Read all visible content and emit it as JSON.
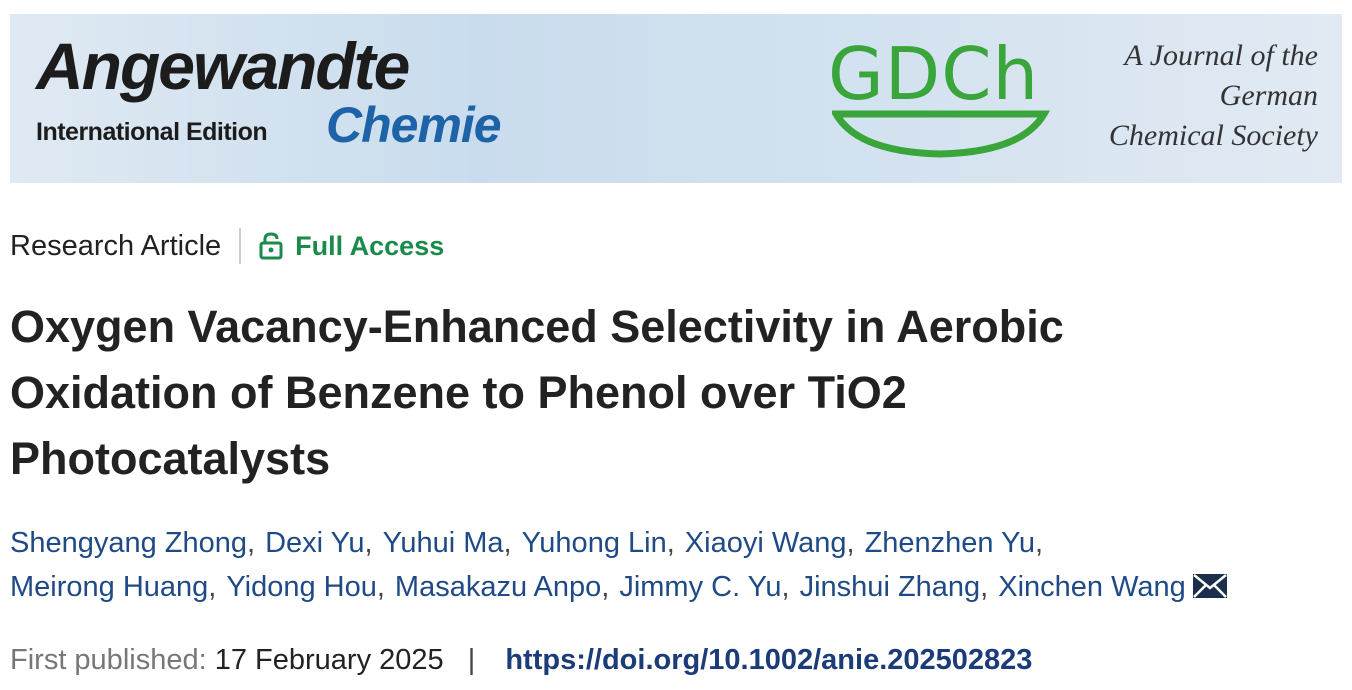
{
  "banner": {
    "journal_name": "Angewandte",
    "journal_subname": "Chemie",
    "edition": "International Edition",
    "society_logo": "GDCh",
    "tagline": [
      "A Journal of the",
      "German",
      "Chemical Society"
    ]
  },
  "article": {
    "type": "Research Article",
    "access": "Full Access",
    "title_lines": [
      "Oxygen Vacancy-Enhanced Selectivity in Aerobic",
      "Oxidation of Benzene to Phenol over TiO2",
      "Photocatalysts"
    ],
    "authors": [
      [
        "Shengyang Zhong",
        "Dexi Yu",
        "Yuhui Ma",
        "Yuhong Lin",
        "Xiaoyi Wang",
        "Zhenzhen Yu"
      ],
      [
        "Meirong Huang",
        "Yidong Hou",
        "Masakazu Anpo",
        "Jimmy C. Yu",
        "Jinshui Zhang",
        "Xinchen Wang"
      ]
    ],
    "author_separator": ",",
    "published_label": "First published:",
    "published_date": "17 February 2025",
    "separator": "|",
    "doi": "https://doi.org/10.1002/anie.202502823"
  }
}
